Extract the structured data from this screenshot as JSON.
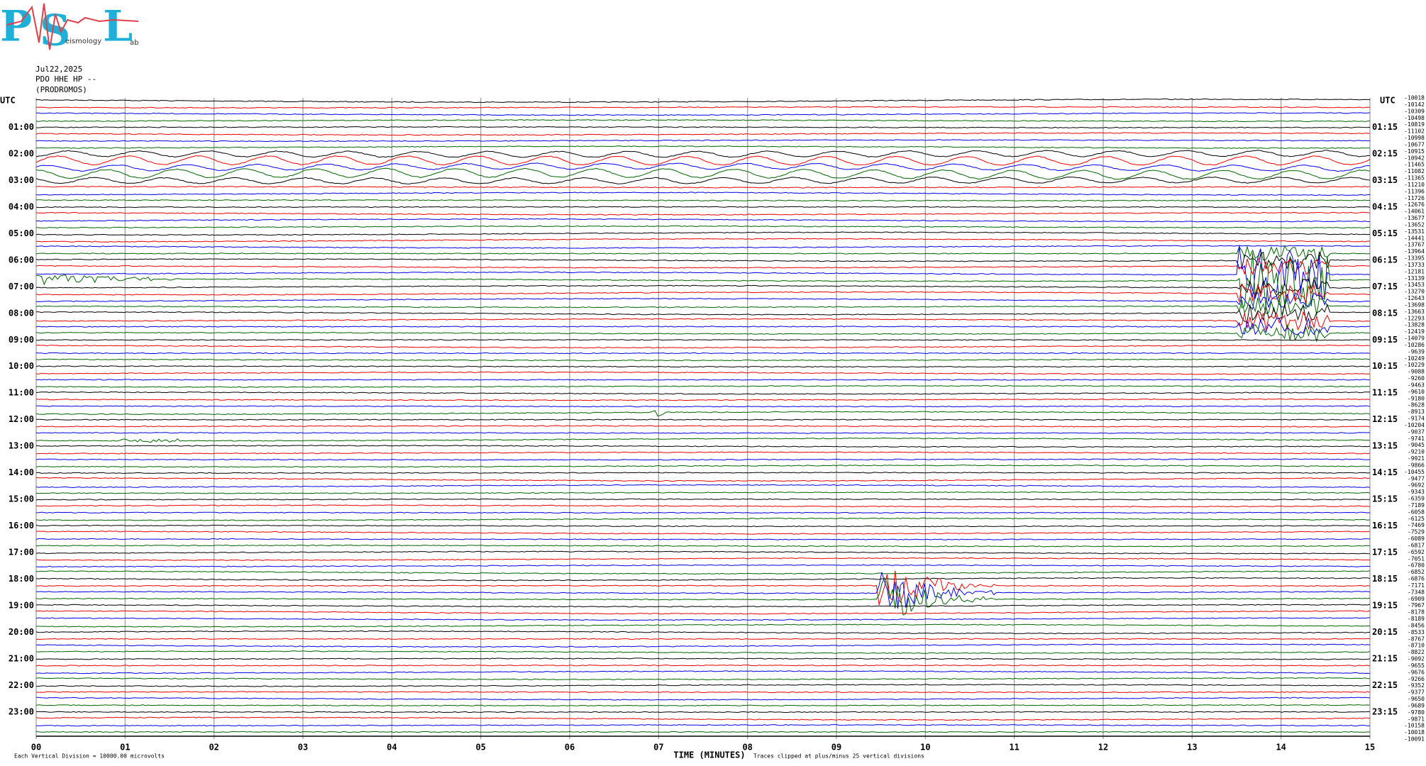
{
  "logo": {
    "letters": [
      "P",
      "S",
      "L"
    ],
    "subtexts": [
      "eismology",
      "ab"
    ]
  },
  "header": {
    "date": "Jul22,2025",
    "channel": "PDO HHE HP --",
    "station": "(PRODROMOS)"
  },
  "left_unit": "UTC",
  "right_unit": "UTC",
  "left_times": [
    "01:00",
    "02:00",
    "03:00",
    "04:00",
    "05:00",
    "06:00",
    "07:00",
    "08:00",
    "09:00",
    "10:00",
    "11:00",
    "12:00",
    "13:00",
    "14:00",
    "15:00",
    "16:00",
    "17:00",
    "18:00",
    "19:00",
    "20:00",
    "21:00",
    "22:00",
    "23:00"
  ],
  "right_times": [
    "01:15",
    "02:15",
    "03:15",
    "04:15",
    "05:15",
    "06:15",
    "07:15",
    "08:15",
    "09:15",
    "10:15",
    "11:15",
    "12:15",
    "13:15",
    "14:15",
    "15:15",
    "16:15",
    "17:15",
    "18:15",
    "19:15",
    "20:15",
    "21:15",
    "22:15",
    "23:15"
  ],
  "right_values": [
    -10018,
    -10142,
    -10309,
    -10498,
    -10819,
    -11102,
    -10998,
    -10677,
    -10915,
    -10942,
    -11465,
    -11082,
    -11365,
    -11210,
    -11396,
    -11726,
    -12676,
    -14061,
    -13677,
    -13652,
    -13531,
    -14441,
    -13767,
    -13964,
    -13395,
    -13733,
    -12181,
    -13139,
    -13453,
    -13270,
    -12643,
    -13698,
    -13663,
    -12293,
    -13828,
    -12419,
    -14079,
    -10286,
    -9639,
    -10249,
    -10229,
    -9088,
    -9260,
    -9463,
    -9610,
    -9180,
    -8628,
    -8913,
    -9174,
    -10204,
    -9037,
    -9741,
    -9045,
    -9210,
    -9921,
    -9866,
    -10455,
    -9477,
    -9692,
    -9343,
    -6359,
    -7189,
    -6058,
    -6125,
    -7469,
    -7529,
    -6089,
    -6817,
    -6592,
    -7051,
    -6780,
    -6852,
    -6876,
    -7171,
    -7348,
    -6909,
    -7967,
    -8178,
    -8189,
    -8456,
    -8533,
    -8767,
    -8710,
    -8822,
    -9092,
    -9655,
    -9676,
    -9266,
    -9352,
    -9377,
    -9650,
    -9689,
    -9780,
    -9871,
    -10158,
    -10018,
    -10091
  ],
  "x_ticks": [
    "00",
    "01",
    "02",
    "03",
    "04",
    "05",
    "06",
    "07",
    "08",
    "09",
    "10",
    "11",
    "12",
    "13",
    "14",
    "15"
  ],
  "footer": {
    "scale_note": "Each Vertical Division = 10000.00 microvolts",
    "x_label": "TIME (MINUTES)",
    "clip_note": "Traces clipped at plus/minus 25 vertical divisions"
  }
}
